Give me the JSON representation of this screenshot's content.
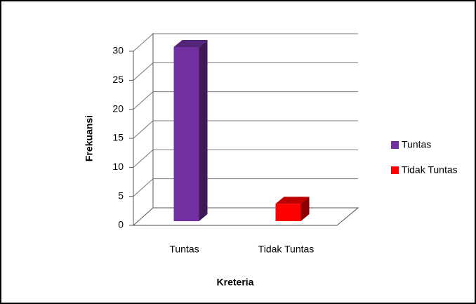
{
  "chart_data": {
    "type": "bar",
    "x_label": "Kreteria",
    "y_label": "Frekuansi",
    "categories": [
      "Tuntas",
      "Tidak Tuntas"
    ],
    "series": [
      {
        "name": "Tuntas",
        "color": "#7030a0",
        "values": [
          30,
          null
        ]
      },
      {
        "name": "Tidak Tuntas",
        "color": "#ff0000",
        "values": [
          null,
          3
        ]
      }
    ],
    "ylim": [
      0,
      30
    ],
    "yticks": [
      0,
      5,
      10,
      15,
      20,
      25,
      30
    ],
    "grid": true,
    "legend": "right"
  }
}
